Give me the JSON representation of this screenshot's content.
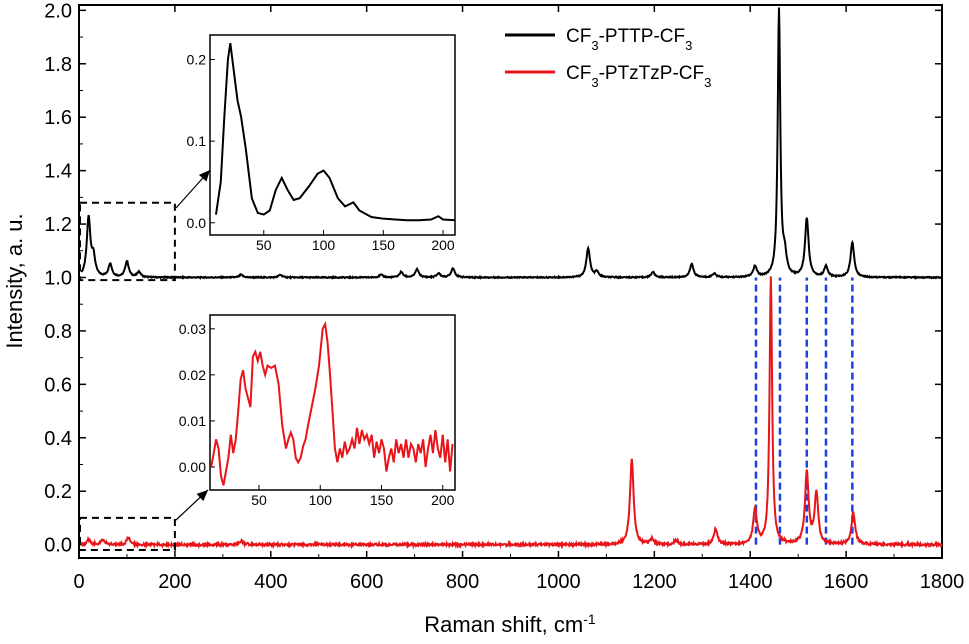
{
  "chart_data": {
    "type": "line",
    "xlabel": "Raman shift, cm",
    "xlabel_sup": "-1",
    "ylabel": "Intensity, a. u.",
    "xlim": [
      0,
      1800
    ],
    "ylim": [
      -0.05,
      2.02
    ],
    "xticks": [
      0,
      200,
      400,
      600,
      800,
      1000,
      1200,
      1400,
      1600,
      1800
    ],
    "yticks": [
      0.0,
      0.2,
      0.4,
      0.6,
      0.8,
      1.0,
      1.2,
      1.4,
      1.6,
      1.8,
      2.0
    ],
    "legend_position": "top-right",
    "series": [
      {
        "name_parts": [
          "CF",
          "3",
          "-PTTP-CF",
          "3"
        ],
        "color": "#000000",
        "baseline": 1.0,
        "peaks": [
          [
            20,
            0.22
          ],
          [
            30,
            0.07
          ],
          [
            65,
            0.05
          ],
          [
            100,
            0.06
          ],
          [
            125,
            0.02
          ],
          [
            338,
            0.01
          ],
          [
            420,
            0.01
          ],
          [
            630,
            0.01
          ],
          [
            672,
            0.02
          ],
          [
            705,
            0.03
          ],
          [
            750,
            0.015
          ],
          [
            780,
            0.035
          ],
          [
            1062,
            0.11
          ],
          [
            1080,
            0.02
          ],
          [
            1197,
            0.02
          ],
          [
            1278,
            0.05
          ],
          [
            1325,
            0.015
          ],
          [
            1410,
            0.04
          ],
          [
            1460,
            1.0
          ],
          [
            1472,
            0.07
          ],
          [
            1518,
            0.22
          ],
          [
            1558,
            0.04
          ],
          [
            1613,
            0.13
          ]
        ]
      },
      {
        "name_parts": [
          "CF",
          "3",
          "-PTzTzP-CF",
          "3"
        ],
        "color": "#e8141a",
        "baseline": 0.0,
        "peaks": [
          [
            20,
            0.02
          ],
          [
            50,
            0.02
          ],
          [
            103,
            0.025
          ],
          [
            338,
            0.015
          ],
          [
            1153,
            0.32
          ],
          [
            1195,
            0.02
          ],
          [
            1245,
            0.015
          ],
          [
            1328,
            0.06
          ],
          [
            1410,
            0.13
          ],
          [
            1443,
            1.0
          ],
          [
            1518,
            0.27
          ],
          [
            1538,
            0.19
          ],
          [
            1615,
            0.12
          ]
        ]
      }
    ],
    "guide_lines": {
      "color": "#1f3fe0",
      "x": [
        1412,
        1462,
        1518,
        1558,
        1613
      ],
      "y_range": [
        0.0,
        1.0
      ]
    },
    "zoom_boxes": [
      {
        "x_range": [
          0,
          200
        ],
        "y_range": [
          0.99,
          1.28
        ],
        "target": "inset_black"
      },
      {
        "x_range": [
          0,
          200
        ],
        "y_range": [
          -0.02,
          0.1
        ],
        "target": "inset_red"
      }
    ],
    "insets": [
      {
        "name": "inset_black",
        "series_color": "#000000",
        "xlim": [
          5,
          210
        ],
        "ylim": [
          -0.015,
          0.23
        ],
        "xticks": [
          50,
          100,
          150,
          200
        ],
        "yticks": [
          0.0,
          0.1,
          0.2
        ],
        "ytick_labels": [
          "0.0",
          "0.1",
          "0.2"
        ],
        "points": [
          [
            10,
            0.01
          ],
          [
            14,
            0.05
          ],
          [
            17,
            0.13
          ],
          [
            20,
            0.2
          ],
          [
            22,
            0.22
          ],
          [
            25,
            0.185
          ],
          [
            28,
            0.15
          ],
          [
            31,
            0.13
          ],
          [
            35,
            0.09
          ],
          [
            40,
            0.03
          ],
          [
            45,
            0.012
          ],
          [
            50,
            0.01
          ],
          [
            55,
            0.015
          ],
          [
            60,
            0.04
          ],
          [
            65,
            0.055
          ],
          [
            70,
            0.04
          ],
          [
            75,
            0.028
          ],
          [
            80,
            0.03
          ],
          [
            88,
            0.045
          ],
          [
            95,
            0.06
          ],
          [
            100,
            0.064
          ],
          [
            105,
            0.055
          ],
          [
            112,
            0.03
          ],
          [
            118,
            0.02
          ],
          [
            125,
            0.025
          ],
          [
            130,
            0.015
          ],
          [
            140,
            0.007
          ],
          [
            150,
            0.005
          ],
          [
            160,
            0.004
          ],
          [
            170,
            0.003
          ],
          [
            180,
            0.003
          ],
          [
            190,
            0.004
          ],
          [
            196,
            0.008
          ],
          [
            200,
            0.004
          ],
          [
            210,
            0.003
          ]
        ]
      },
      {
        "name": "inset_red",
        "series_color": "#e8141a",
        "xlim": [
          10,
          210
        ],
        "ylim": [
          -0.005,
          0.033
        ],
        "xticks": [
          50,
          100,
          150,
          200
        ],
        "yticks": [
          0.0,
          0.01,
          0.02,
          0.03
        ],
        "ytick_labels": [
          "0.00",
          "0.01",
          "0.02",
          "0.03"
        ],
        "points": [
          [
            11,
            0.0
          ],
          [
            13,
            0.003
          ],
          [
            15,
            0.006
          ],
          [
            17,
            0.004
          ],
          [
            19,
            -0.002
          ],
          [
            21,
            -0.004
          ],
          [
            23,
            -0.001
          ],
          [
            25,
            0.002
          ],
          [
            27,
            0.007
          ],
          [
            29,
            0.003
          ],
          [
            31,
            0.006
          ],
          [
            33,
            0.012
          ],
          [
            35,
            0.019
          ],
          [
            37,
            0.021
          ],
          [
            39,
            0.017
          ],
          [
            41,
            0.015
          ],
          [
            43,
            0.013
          ],
          [
            45,
            0.024
          ],
          [
            47,
            0.025
          ],
          [
            49,
            0.023
          ],
          [
            51,
            0.025
          ],
          [
            53,
            0.022
          ],
          [
            55,
            0.02
          ],
          [
            57,
            0.022
          ],
          [
            60,
            0.0215
          ],
          [
            63,
            0.022
          ],
          [
            66,
            0.018
          ],
          [
            69,
            0.009
          ],
          [
            72,
            0.004
          ],
          [
            74,
            0.006
          ],
          [
            76,
            0.0075
          ],
          [
            78,
            0.006
          ],
          [
            80,
            0.002
          ],
          [
            82,
            0.001
          ],
          [
            84,
            0.002
          ],
          [
            86,
            0.0045
          ],
          [
            88,
            0.006
          ],
          [
            90,
            0.009
          ],
          [
            93,
            0.013
          ],
          [
            96,
            0.017
          ],
          [
            99,
            0.022
          ],
          [
            102,
            0.03
          ],
          [
            104,
            0.031
          ],
          [
            106,
            0.027
          ],
          [
            108,
            0.02
          ],
          [
            110,
            0.012
          ],
          [
            112,
            0.004
          ],
          [
            114,
            0.001
          ],
          [
            116,
            0.004
          ],
          [
            118,
            0.002
          ],
          [
            120,
            0.0055
          ],
          [
            122,
            0.003
          ],
          [
            124,
            0.004
          ],
          [
            126,
            0.006
          ],
          [
            128,
            0.004
          ],
          [
            130,
            0.0085
          ],
          [
            132,
            0.005
          ],
          [
            134,
            0.008
          ],
          [
            136,
            0.006
          ],
          [
            138,
            0.007
          ],
          [
            140,
            0.005
          ],
          [
            142,
            0.007
          ],
          [
            144,
            0.002
          ],
          [
            146,
            0.0055
          ],
          [
            148,
            0.003
          ],
          [
            150,
            0.006
          ],
          [
            152,
            0.004
          ],
          [
            154,
            -0.001
          ],
          [
            156,
            0.002
          ],
          [
            158,
            0.004
          ],
          [
            160,
            0.001
          ],
          [
            162,
            0.006
          ],
          [
            164,
            0.003
          ],
          [
            166,
            0.005
          ],
          [
            168,
            0.002
          ],
          [
            170,
            0.006
          ],
          [
            172,
            0.002
          ],
          [
            174,
            0.005
          ],
          [
            176,
            0.004
          ],
          [
            178,
            0.001
          ],
          [
            180,
            0.005
          ],
          [
            182,
            0.003
          ],
          [
            184,
            0.006
          ],
          [
            186,
            0.0
          ],
          [
            188,
            0.004
          ],
          [
            190,
            0.007
          ],
          [
            192,
            0.003
          ],
          [
            194,
            0.008
          ],
          [
            196,
            0.004
          ],
          [
            198,
            0.002
          ],
          [
            200,
            0.007
          ],
          [
            202,
            0.001
          ],
          [
            204,
            0.006
          ],
          [
            206,
            -0.001
          ],
          [
            208,
            0.005
          ]
        ]
      }
    ]
  }
}
